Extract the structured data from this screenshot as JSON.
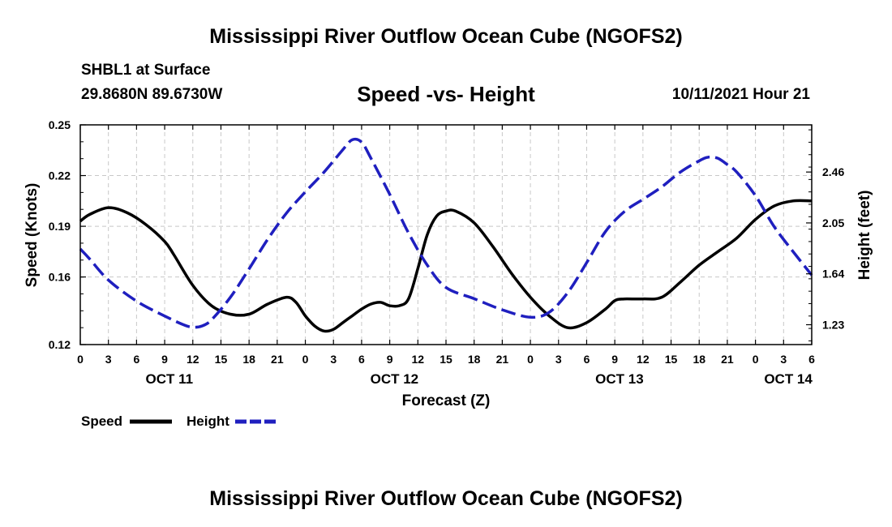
{
  "header": {
    "title_top": "Mississippi River Outflow Ocean Cube (NGOFS2)",
    "title_bottom": "Mississippi River Outflow Ocean Cube (NGOFS2)",
    "station": "SHBL1 at Surface",
    "coords": "29.8680N  89.6730W",
    "datetime": "10/11/2021 Hour 21"
  },
  "chart_data": {
    "type": "line",
    "title": "Speed -vs- Height",
    "xlabel": "Forecast (Z)",
    "ylabel": "Speed (Knots)",
    "y2label": "Height (feet)",
    "x_range_hours": [
      0,
      78
    ],
    "ylim": [
      0.12,
      0.25
    ],
    "y2lim": [
      1.07,
      2.84
    ],
    "y_ticks": [
      "0.12",
      "0.16",
      "0.19",
      "0.22",
      "0.25"
    ],
    "y_tick_values": [
      0.12,
      0.16,
      0.19,
      0.22,
      0.25
    ],
    "y2_ticks": [
      "1.23",
      "1.64",
      "2.05",
      "2.46"
    ],
    "y2_tick_values": [
      1.23,
      1.64,
      2.05,
      2.46
    ],
    "x_tick_labels": [
      "0",
      "3",
      "6",
      "9",
      "12",
      "15",
      "18",
      "21",
      "0",
      "3",
      "6",
      "9",
      "12",
      "15",
      "18",
      "21",
      "0",
      "3",
      "6",
      "9",
      "12",
      "15",
      "18",
      "21",
      "0",
      "3",
      "6"
    ],
    "date_labels": [
      {
        "text": "OCT 11",
        "hour": 9.5
      },
      {
        "text": "OCT 12",
        "hour": 33.5
      },
      {
        "text": "OCT 13",
        "hour": 57.5
      },
      {
        "text": "OCT 14",
        "hour": 75.5
      }
    ],
    "grid": true,
    "series": [
      {
        "name": "Speed",
        "axis": "left",
        "color": "#000000",
        "style": "solid",
        "x": [
          0,
          1,
          3,
          5,
          7,
          9,
          10,
          12,
          14,
          16,
          18,
          20,
          22,
          23,
          24,
          25,
          26,
          27,
          28,
          29,
          30,
          31,
          32,
          33,
          34,
          35,
          36,
          37,
          38,
          39,
          40,
          42,
          44,
          46,
          48,
          50,
          52,
          54,
          56,
          57,
          58,
          60,
          62,
          64,
          66,
          68,
          70,
          72,
          74,
          76,
          78
        ],
        "y": [
          0.193,
          0.197,
          0.201,
          0.198,
          0.191,
          0.181,
          0.173,
          0.155,
          0.143,
          0.138,
          0.138,
          0.144,
          0.148,
          0.145,
          0.137,
          0.131,
          0.128,
          0.129,
          0.133,
          0.137,
          0.141,
          0.144,
          0.145,
          0.143,
          0.143,
          0.147,
          0.165,
          0.185,
          0.196,
          0.199,
          0.199,
          0.192,
          0.178,
          0.162,
          0.148,
          0.137,
          0.13,
          0.133,
          0.141,
          0.146,
          0.147,
          0.147,
          0.148,
          0.157,
          0.167,
          0.175,
          0.183,
          0.194,
          0.202,
          0.205,
          0.205
        ]
      },
      {
        "name": "Height",
        "axis": "right",
        "color": "#1f1fbf",
        "style": "dashed",
        "x": [
          0,
          1,
          3,
          6,
          9,
          11,
          12,
          13,
          14,
          16,
          18,
          20,
          22,
          24,
          26,
          28,
          29,
          30,
          31,
          33,
          35,
          37,
          39,
          42,
          45,
          48,
          50,
          52,
          54,
          56,
          58,
          60,
          62,
          64,
          66,
          67,
          68,
          69,
          70,
          72,
          74,
          76,
          78
        ],
        "y": [
          1.84,
          1.76,
          1.59,
          1.42,
          1.3,
          1.23,
          1.21,
          1.22,
          1.27,
          1.45,
          1.68,
          1.92,
          2.13,
          2.3,
          2.46,
          2.64,
          2.72,
          2.7,
          2.57,
          2.28,
          1.97,
          1.71,
          1.53,
          1.44,
          1.35,
          1.29,
          1.33,
          1.49,
          1.73,
          1.98,
          2.14,
          2.24,
          2.34,
          2.46,
          2.55,
          2.58,
          2.57,
          2.52,
          2.46,
          2.27,
          2.02,
          1.82,
          1.63
        ]
      }
    ]
  }
}
